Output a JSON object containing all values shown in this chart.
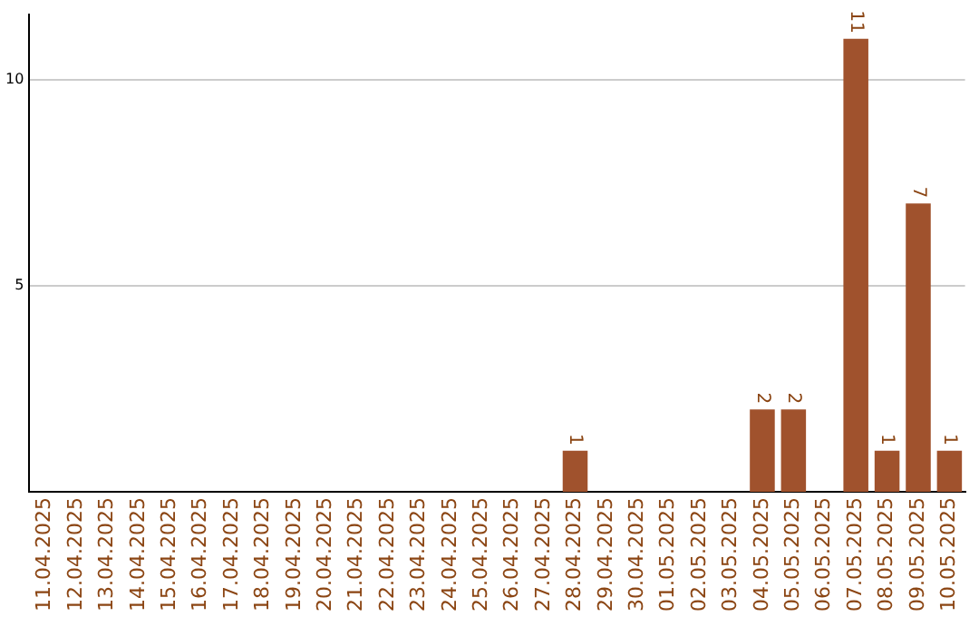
{
  "chart_data": {
    "type": "bar",
    "categories": [
      "11.04.2025",
      "12.04.2025",
      "13.04.2025",
      "14.04.2025",
      "15.04.2025",
      "16.04.2025",
      "17.04.2025",
      "18.04.2025",
      "19.04.2025",
      "20.04.2025",
      "21.04.2025",
      "22.04.2025",
      "23.04.2025",
      "24.04.2025",
      "25.04.2025",
      "26.04.2025",
      "27.04.2025",
      "28.04.2025",
      "29.04.2025",
      "30.04.2025",
      "01.05.2025",
      "02.05.2025",
      "03.05.2025",
      "04.05.2025",
      "05.05.2025",
      "06.05.2025",
      "07.05.2025",
      "08.05.2025",
      "09.05.2025",
      "10.05.2025"
    ],
    "values": [
      0,
      0,
      0,
      0,
      0,
      0,
      0,
      0,
      0,
      0,
      0,
      0,
      0,
      0,
      0,
      0,
      0,
      1,
      0,
      0,
      0,
      0,
      0,
      2,
      2,
      0,
      11,
      1,
      7,
      1
    ],
    "value_labels": [
      null,
      null,
      null,
      null,
      null,
      null,
      null,
      null,
      null,
      null,
      null,
      null,
      null,
      null,
      null,
      null,
      null,
      "1",
      null,
      null,
      null,
      null,
      null,
      "2",
      "2",
      null,
      "11",
      "1",
      "7",
      "1"
    ],
    "color": "#a0522d",
    "ylim": [
      0,
      11.6
    ],
    "yticks": [
      5,
      10
    ],
    "grid": "y"
  }
}
